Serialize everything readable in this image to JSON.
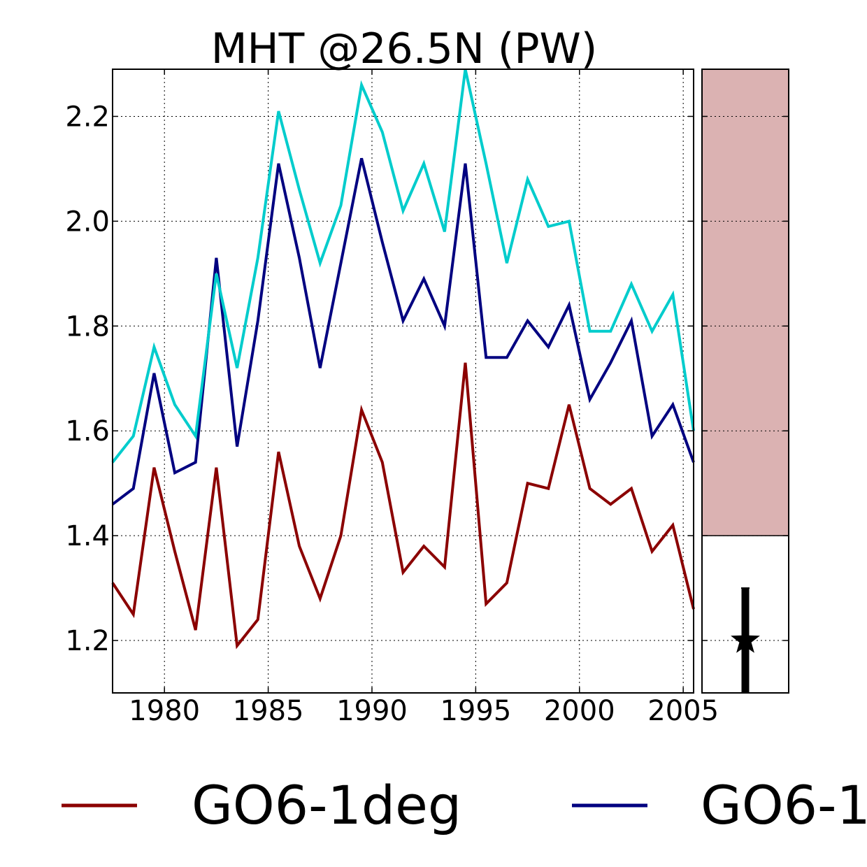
{
  "chart_data": [
    {
      "type": "line",
      "title": "MHT @26.5N (PW)",
      "xlabel": "",
      "ylabel": "",
      "xlim": [
        1977.5,
        2005.5
      ],
      "ylim": [
        1.1,
        2.29
      ],
      "grid": true,
      "x_ticks": [
        1980,
        1985,
        1990,
        1995,
        2000,
        2005
      ],
      "x_tick_labels": [
        "1980",
        "1985",
        "1990",
        "1995",
        "2000",
        "2005"
      ],
      "y_ticks": [
        1.2,
        1.4,
        1.6,
        1.8,
        2.0,
        2.2
      ],
      "y_tick_labels": [
        "1.2",
        "1.4",
        "1.6",
        "1.8",
        "2.0",
        "2.2"
      ],
      "x": [
        1977.5,
        1978.5,
        1979.5,
        1980.5,
        1981.5,
        1982.5,
        1983.5,
        1984.5,
        1985.5,
        1986.5,
        1987.5,
        1988.5,
        1989.5,
        1990.5,
        1991.5,
        1992.5,
        1993.5,
        1994.5,
        1995.5,
        1996.5,
        1997.5,
        1998.5,
        1999.5,
        2000.5,
        2001.5,
        2002.5,
        2003.5,
        2004.5,
        2005.5
      ],
      "series": [
        {
          "name": "GO6-1deg",
          "color": "#8b0000",
          "values": [
            1.31,
            1.25,
            1.53,
            1.37,
            1.22,
            1.53,
            1.19,
            1.24,
            1.56,
            1.38,
            1.28,
            1.4,
            1.64,
            1.54,
            1.33,
            1.38,
            1.34,
            1.73,
            1.27,
            1.31,
            1.5,
            1.49,
            1.65,
            1.49,
            1.46,
            1.49,
            1.37,
            1.42,
            1.26
          ]
        },
        {
          "name": "",
          "color": "#000080",
          "values": [
            1.46,
            1.49,
            1.71,
            1.52,
            1.54,
            1.93,
            1.57,
            1.81,
            2.11,
            1.93,
            1.72,
            1.92,
            2.12,
            1.96,
            1.81,
            1.89,
            1.8,
            2.11,
            1.74,
            1.74,
            1.81,
            1.76,
            1.84,
            1.66,
            1.73,
            1.81,
            1.59,
            1.65,
            1.54
          ]
        },
        {
          "name": "",
          "color": "#00cccc",
          "values": [
            1.54,
            1.59,
            1.76,
            1.65,
            1.59,
            1.9,
            1.72,
            1.93,
            2.21,
            2.06,
            1.92,
            2.03,
            2.26,
            2.17,
            2.02,
            2.11,
            1.98,
            2.29,
            2.11,
            1.92,
            2.08,
            1.99,
            2.0,
            1.79,
            1.79,
            1.88,
            1.79,
            1.86,
            1.6
          ]
        }
      ]
    },
    {
      "type": "bar",
      "title": "",
      "ylim": [
        1.1,
        2.29
      ],
      "grid": true,
      "y_ticks": [
        1.2,
        1.4,
        1.6,
        1.8,
        2.0,
        2.2
      ],
      "shaded_range": {
        "from": 1.4,
        "to": 2.29,
        "color": "#dbb2b2"
      },
      "observation": {
        "value": 1.2,
        "lower": 1.1,
        "upper": 1.3,
        "marker": "star-icon",
        "color": "#000000"
      }
    }
  ],
  "legend": {
    "placement": "bottom",
    "entries": [
      {
        "label": "GO6-1deg",
        "color": "#8b0000"
      },
      {
        "label": "GO6-1",
        "color": "#000080"
      }
    ]
  }
}
